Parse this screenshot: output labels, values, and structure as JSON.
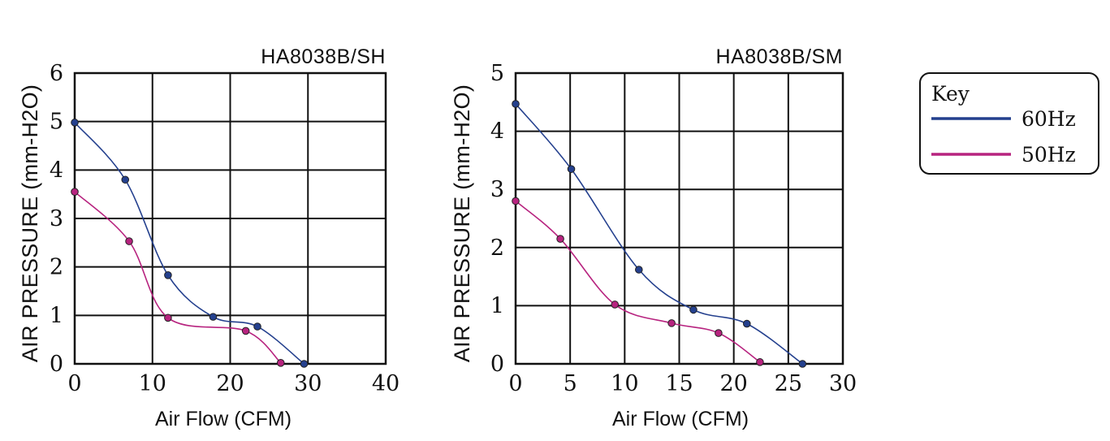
{
  "colors": {
    "s60": "#24408e",
    "s50": "#b7237f",
    "grid": "#111111"
  },
  "key": {
    "title": "Key",
    "items": [
      {
        "label": "60Hz",
        "color": "#24408e"
      },
      {
        "label": "50Hz",
        "color": "#b7237f"
      }
    ]
  },
  "chart_data": [
    {
      "type": "line",
      "title": "HA8038B/SH",
      "xlabel": "Air Flow (CFM)",
      "ylabel": "AIR PRESSURE (mm-H2O)",
      "xlim": [
        0,
        40
      ],
      "ylim": [
        0,
        6
      ],
      "xticks": [
        "0",
        "10",
        "20",
        "30",
        "40"
      ],
      "yticks": [
        "0",
        "1",
        "2",
        "3",
        "4",
        "5",
        "6"
      ],
      "grid": true,
      "series": [
        {
          "name": "60Hz",
          "color": "#24408e",
          "x": [
            0,
            6.5,
            12,
            17.8,
            23.5,
            29.5
          ],
          "y": [
            4.98,
            3.8,
            1.83,
            0.97,
            0.77,
            0.0
          ]
        },
        {
          "name": "50Hz",
          "color": "#b7237f",
          "x": [
            0,
            7,
            12,
            22,
            26.5
          ],
          "y": [
            3.55,
            2.53,
            0.95,
            0.68,
            0.02
          ]
        }
      ]
    },
    {
      "type": "line",
      "title": "HA8038B/SM",
      "xlabel": "Air Flow (CFM)",
      "ylabel": "AIR PRESSURE (mm-H2O)",
      "xlim": [
        0,
        30
      ],
      "ylim": [
        0,
        5
      ],
      "xticks": [
        "0",
        "5",
        "10",
        "15",
        "20",
        "25",
        "30"
      ],
      "yticks": [
        "0",
        "1",
        "2",
        "3",
        "4",
        "5"
      ],
      "grid": true,
      "series": [
        {
          "name": "60Hz",
          "color": "#24408e",
          "x": [
            0,
            5.1,
            11.3,
            16.3,
            21.2,
            26.3
          ],
          "y": [
            4.47,
            3.35,
            1.62,
            0.93,
            0.69,
            0.0
          ]
        },
        {
          "name": "50Hz",
          "color": "#b7237f",
          "x": [
            0,
            4.1,
            9.1,
            14.3,
            18.6,
            22.4
          ],
          "y": [
            2.8,
            2.15,
            1.02,
            0.7,
            0.53,
            0.03
          ]
        }
      ]
    }
  ]
}
